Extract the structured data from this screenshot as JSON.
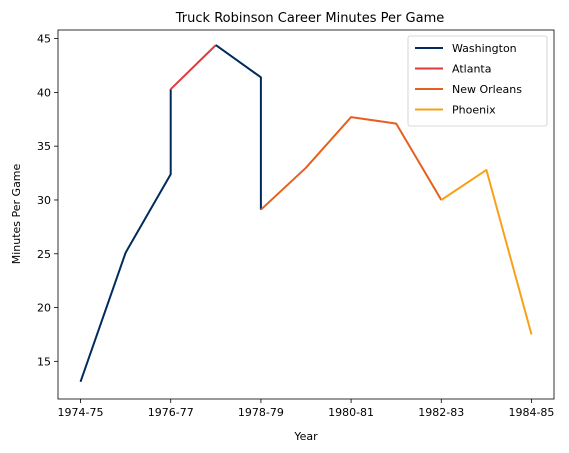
{
  "chart_data": {
    "type": "line",
    "title": "Truck Robinson Career Minutes Per Game",
    "xlabel": "Year",
    "ylabel": "Minutes Per Game",
    "x_categories": [
      "1974-75",
      "1975-76",
      "1976-77",
      "1977-78",
      "1978-79",
      "1979-80",
      "1980-81",
      "1981-82",
      "1982-83",
      "1983-84",
      "1984-85"
    ],
    "x_tick_labels": [
      "1974-75",
      "1976-77",
      "1978-79",
      "1980-81",
      "1982-83",
      "1984-85"
    ],
    "ylim": [
      11.5,
      45.8
    ],
    "yticks": [
      15,
      20,
      25,
      30,
      35,
      40,
      45
    ],
    "grid": false,
    "legend_position": "top-right",
    "series": [
      {
        "name": "Washington",
        "color": "#002B5C",
        "points": [
          {
            "x": "1974-75",
            "y": 13.1
          },
          {
            "x": "1975-76",
            "y": 25.1
          },
          {
            "x": "1976-77",
            "y": 32.4
          },
          {
            "x": "1976-77",
            "y": 40.3
          }
        ]
      },
      {
        "name": "Atlanta",
        "color": "#E03A3E",
        "points": [
          {
            "x": "1976-77",
            "y": 40.3
          },
          {
            "x": "1977-78",
            "y": 44.4
          }
        ]
      },
      {
        "name": "Washington",
        "color": "#002B5C",
        "legend": false,
        "points": [
          {
            "x": "1977-78",
            "y": 44.4
          },
          {
            "x": "1978-79",
            "y": 41.4
          },
          {
            "x": "1978-79",
            "y": 29.1
          }
        ]
      },
      {
        "name": "New Orleans",
        "color": "#E56020",
        "points": [
          {
            "x": "1978-79",
            "y": 29.1
          },
          {
            "x": "1979-80",
            "y": 33.0
          },
          {
            "x": "1980-81",
            "y": 37.7
          },
          {
            "x": "1981-82",
            "y": 37.1
          },
          {
            "x": "1982-83",
            "y": 30.0
          }
        ]
      },
      {
        "name": "Phoenix",
        "color": "#F9A01B",
        "points": [
          {
            "x": "1982-83",
            "y": 30.0
          },
          {
            "x": "1983-84",
            "y": 32.8
          },
          {
            "x": "1984-85",
            "y": 17.5
          }
        ]
      }
    ]
  }
}
